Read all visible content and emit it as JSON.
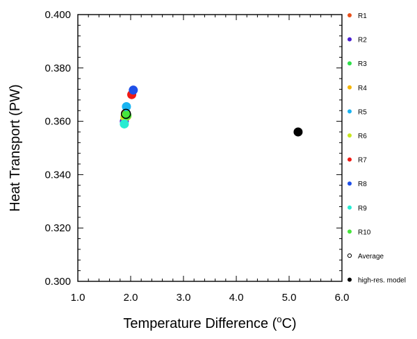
{
  "chart_data": {
    "type": "scatter",
    "title": "",
    "xlabel": "Temperature Difference (",
    "xlabel_unit": "C)",
    "xlabel_degree": "o",
    "ylabel": "Heat Transport (PW)",
    "xlim": [
      1.0,
      6.0
    ],
    "ylim": [
      0.3,
      0.4
    ],
    "x_ticks": [
      1.0,
      2.0,
      3.0,
      4.0,
      5.0,
      6.0
    ],
    "x_tick_labels": [
      "1.0",
      "2.0",
      "3.0",
      "4.0",
      "5.0",
      "6.0"
    ],
    "y_ticks": [
      0.3,
      0.32,
      0.34,
      0.36,
      0.38,
      0.4
    ],
    "y_tick_labels": [
      "0.300",
      "0.320",
      "0.340",
      "0.360",
      "0.380",
      "0.400"
    ],
    "grid": false,
    "legend_position": "right",
    "series": [
      {
        "name": "R1",
        "color": "#e8501a",
        "x": 1.9,
        "y": 0.3625
      },
      {
        "name": "R2",
        "color": "#4a1fd0",
        "x": 1.88,
        "y": 0.36
      },
      {
        "name": "R3",
        "color": "#2ee04a",
        "x": 1.92,
        "y": 0.3625
      },
      {
        "name": "R4",
        "color": "#f5b400",
        "x": 1.93,
        "y": 0.362
      },
      {
        "name": "R5",
        "color": "#19b4f2",
        "x": 1.92,
        "y": 0.3655
      },
      {
        "name": "R6",
        "color": "#c8e61e",
        "x": 1.89,
        "y": 0.3615
      },
      {
        "name": "R7",
        "color": "#f01a14",
        "x": 2.02,
        "y": 0.37
      },
      {
        "name": "R8",
        "color": "#1f50e8",
        "x": 2.05,
        "y": 0.3717
      },
      {
        "name": "R9",
        "color": "#26ecd2",
        "x": 1.88,
        "y": 0.359
      },
      {
        "name": "R10",
        "color": "#46e63c",
        "x": 1.93,
        "y": 0.3622
      },
      {
        "name": "Average",
        "color": "#000000",
        "marker": "open-circle",
        "x": 1.91,
        "y": 0.3628
      },
      {
        "name": "high-res. model",
        "color": "#000000",
        "marker": "filled-circle",
        "x": 5.17,
        "y": 0.356
      }
    ]
  }
}
